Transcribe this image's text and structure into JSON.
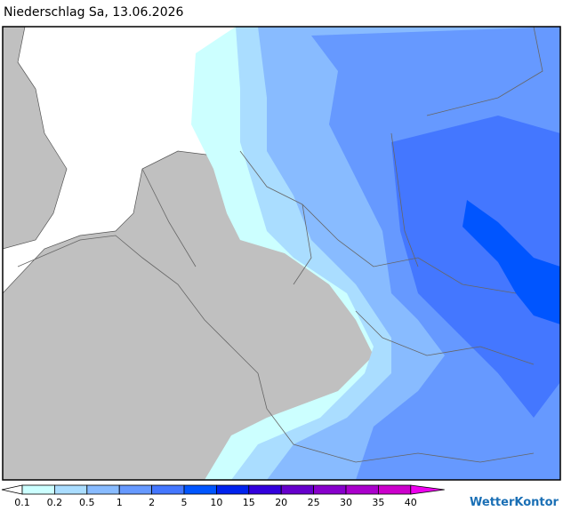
{
  "title": "Niederschlag Sa, 13.06.2026",
  "legend": {
    "levels": [
      0.1,
      0.2,
      0.5,
      1,
      2,
      5,
      10,
      15,
      20,
      25,
      30,
      35,
      40
    ],
    "colors": [
      "#ccffff",
      "#aaddff",
      "#88bbff",
      "#6699ff",
      "#4477ff",
      "#0055ff",
      "#0022ee",
      "#3300dd",
      "#6600cc",
      "#8800cc",
      "#aa00cc",
      "#cc00cc",
      "#ee00ee"
    ]
  },
  "brand": "WetterKontor"
}
